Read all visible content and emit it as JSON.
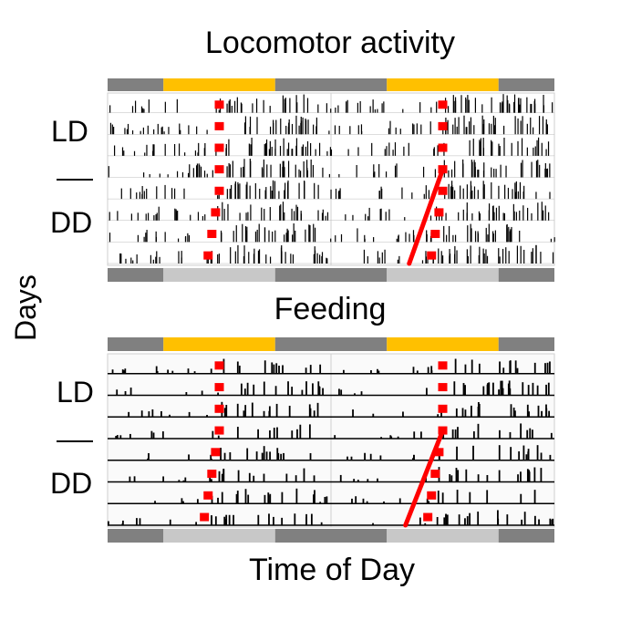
{
  "figure": {
    "title_top": "Locomotor activity",
    "title_bottom": "Feeding",
    "y_label": "Days",
    "x_label": "Time of Day",
    "label_ld": "LD",
    "label_dd": "DD"
  },
  "colors": {
    "light_phase": "#FFC000",
    "dark_phase": "#808080",
    "subjective_day": "#C8C8C8",
    "onset_marker": "#FF0000",
    "activity": "#000000"
  },
  "chart_data": [
    {
      "type": "actogram",
      "title": "Locomotor activity",
      "xlabel": "Time of Day",
      "ylabel": "Days",
      "plot": "double-plotted",
      "hours_span": 48,
      "days": 8,
      "conditions": [
        {
          "name": "LD",
          "days": [
            1,
            2,
            3,
            4
          ]
        },
        {
          "name": "DD",
          "days": [
            5,
            6,
            7,
            8
          ]
        }
      ],
      "top_bar": [
        "dark",
        "light",
        "dark",
        "light",
        "dark"
      ],
      "bottom_bar": [
        "dark",
        "subjective-light",
        "dark",
        "subjective-light",
        "dark"
      ],
      "onset_hours": [
        12.0,
        12.0,
        12.0,
        12.0,
        12.0,
        11.6,
        11.2,
        10.8
      ],
      "marker_style": "points"
    },
    {
      "type": "actogram",
      "title": "Feeding",
      "xlabel": "Time of Day",
      "ylabel": "Days",
      "plot": "double-plotted",
      "hours_span": 48,
      "days": 8,
      "conditions": [
        {
          "name": "LD",
          "days": [
            1,
            2,
            3,
            4
          ]
        },
        {
          "name": "DD",
          "days": [
            5,
            6,
            7,
            8
          ]
        }
      ],
      "top_bar": [
        "dark",
        "light",
        "dark",
        "light",
        "dark"
      ],
      "bottom_bar": [
        "dark",
        "subjective-light",
        "dark",
        "subjective-light",
        "dark"
      ],
      "onset_hours": [
        12.0,
        12.0,
        12.0,
        12.0,
        11.6,
        11.2,
        10.8,
        10.4
      ],
      "marker_style": "points"
    }
  ]
}
